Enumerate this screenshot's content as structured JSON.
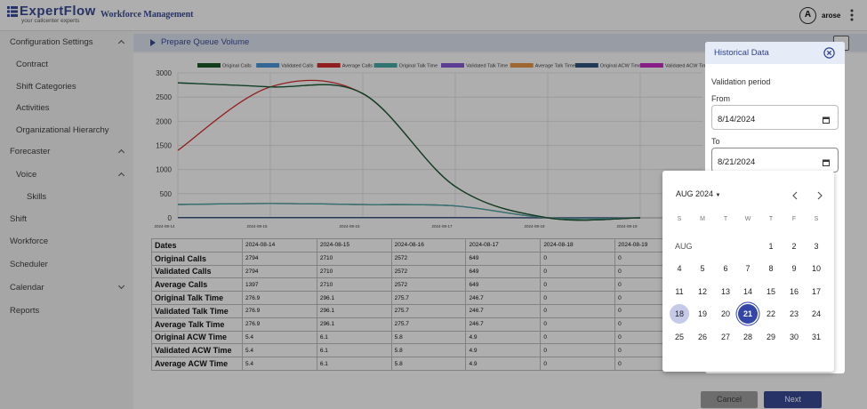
{
  "header": {
    "logo": "ExpertFlow",
    "tagline": "your callcenter experts",
    "app": "Workforce Management",
    "avatar": "A",
    "user": "arose"
  },
  "sidebar": [
    {
      "label": "Configuration Settings",
      "level": 0,
      "chevron": "up"
    },
    {
      "label": "Contract",
      "level": 1
    },
    {
      "label": "Shift Categories",
      "level": 1
    },
    {
      "label": "Activities",
      "level": 1
    },
    {
      "label": "Organizational Hierarchy",
      "level": 1
    },
    {
      "label": "Forecaster",
      "level": 0,
      "chevron": "up"
    },
    {
      "label": "Voice",
      "level": 1,
      "chevron": "up"
    },
    {
      "label": "Skills",
      "level": 2
    },
    {
      "label": "Shift",
      "level": 0
    },
    {
      "label": "Workforce",
      "level": 0
    },
    {
      "label": "Scheduler",
      "level": 0
    },
    {
      "label": "Calendar",
      "level": 0,
      "chevron": "down"
    },
    {
      "label": "Reports",
      "level": 0
    }
  ],
  "page_title": "Prepare Queue Volume",
  "chart": {
    "type": "line",
    "categories": [
      "2024-08-14",
      "2024-08-15",
      "2024-08-16",
      "2024-08-17",
      "2024-08-18",
      "2024-08-19"
    ],
    "ylim": [
      0,
      3000
    ],
    "yticks": [
      0,
      500,
      1000,
      1500,
      2000,
      2500,
      3000
    ],
    "grid": true,
    "series": [
      {
        "name": "Original Calls",
        "color": "#0b4f1c",
        "values": [
          2794,
          2710,
          2572,
          649,
          0,
          0
        ]
      },
      {
        "name": "Validated Calls",
        "color": "#3d8fd6",
        "values": [
          2794,
          2710,
          2572,
          649,
          0,
          0
        ]
      },
      {
        "name": "Average Calls",
        "color": "#d11f1f",
        "values": [
          1397,
          2710,
          2572,
          649,
          0,
          0
        ]
      },
      {
        "name": "Original Talk Time",
        "color": "#3aa6a0",
        "values": [
          276.9,
          296.1,
          275.7,
          246.7,
          0,
          0
        ]
      },
      {
        "name": "Validated Talk Time",
        "color": "#7d4fd6",
        "values": [
          276.9,
          296.1,
          275.7,
          246.7,
          0,
          0
        ]
      },
      {
        "name": "Average Talk Time",
        "color": "#e8913a",
        "values": [
          276.9,
          296.1,
          275.7,
          246.7,
          0,
          0
        ]
      },
      {
        "name": "Original ACW Time",
        "color": "#1f4a78",
        "values": [
          5.4,
          6.1,
          5.8,
          4.9,
          0,
          0
        ]
      },
      {
        "name": "Validated ACW Time",
        "color": "#c21fc2",
        "values": [
          5.4,
          6.1,
          5.8,
          4.9,
          0,
          0
        ]
      },
      {
        "name": "Average ACW Time",
        "color": "#8fbf3a",
        "values": [
          5.4,
          6.1,
          5.8,
          4.9,
          0,
          0
        ]
      }
    ]
  },
  "table": {
    "header": "Dates"
  },
  "dialog": {
    "title": "Historical Data",
    "section": "Validation period",
    "from_label": "From",
    "from_value": "8/14/2024",
    "to_label": "To",
    "to_value": "8/21/2024"
  },
  "calendar": {
    "month": "AUG 2024",
    "month_short": "AUG",
    "weekdays": [
      "S",
      "M",
      "T",
      "W",
      "T",
      "F",
      "S"
    ],
    "days": [
      1,
      2,
      3,
      4,
      5,
      6,
      7,
      8,
      9,
      10,
      11,
      12,
      13,
      14,
      15,
      16,
      17,
      18,
      19,
      20,
      21,
      22,
      23,
      24,
      25,
      26,
      27,
      28,
      29,
      30,
      31
    ],
    "today": 18,
    "selected": 21
  },
  "buttons": {
    "cancel": "Cancel",
    "next": "Next"
  }
}
